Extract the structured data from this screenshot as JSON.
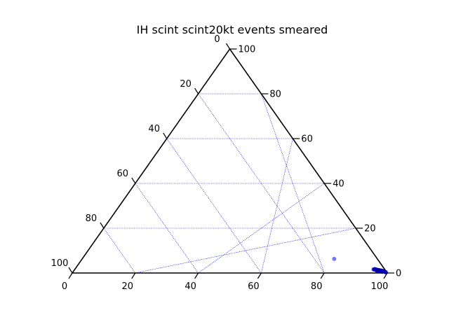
{
  "chart_data": {
    "type": "scatter",
    "subtype": "ternary",
    "title": "IH scint scint20kt events smeared",
    "axes": {
      "bottom": {
        "ticks": [
          "0",
          "20",
          "40",
          "60",
          "80",
          "100"
        ],
        "range": [
          0,
          100
        ]
      },
      "right": {
        "ticks": [
          "0",
          "20",
          "40",
          "60",
          "80",
          "100"
        ],
        "range": [
          0,
          100
        ]
      },
      "left": {
        "ticks": [
          "0",
          "20",
          "40",
          "60",
          "80",
          "100"
        ],
        "range": [
          0,
          100
        ]
      }
    },
    "grid": true,
    "grid_color": "#0000cc",
    "axis_color": "#000000",
    "series": [
      {
        "color": "#0000aa",
        "points": [
          {
            "b": 99.0,
            "r": 0.5
          },
          {
            "b": 98.6,
            "r": 0.7
          },
          {
            "b": 98.2,
            "r": 0.9
          },
          {
            "b": 97.8,
            "r": 1.0
          },
          {
            "b": 97.4,
            "r": 1.1
          },
          {
            "b": 97.0,
            "r": 1.2
          },
          {
            "b": 96.6,
            "r": 1.3
          },
          {
            "b": 96.2,
            "r": 1.4
          },
          {
            "b": 95.8,
            "r": 1.5
          },
          {
            "b": 95.5,
            "r": 1.6
          },
          {
            "b": 95.2,
            "r": 1.7
          },
          {
            "b": 94.9,
            "r": 1.6
          },
          {
            "b": 98.0,
            "r": 0.6
          },
          {
            "b": 97.2,
            "r": 0.8
          },
          {
            "b": 96.4,
            "r": 1.0
          },
          {
            "b": 99.4,
            "r": 0.3
          },
          {
            "b": 95.9,
            "r": 1.2
          }
        ]
      },
      {
        "color": "#6a6af5",
        "points": [
          {
            "b": 80.0,
            "r": 6.3
          }
        ]
      }
    ]
  }
}
